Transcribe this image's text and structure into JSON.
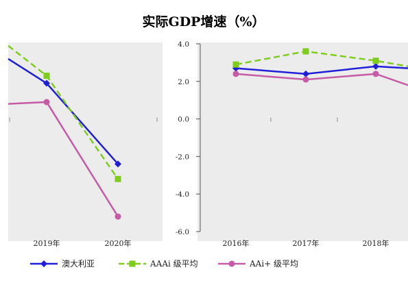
{
  "chart_data": [
    {
      "type": "line",
      "title": "实际GDP增速（%）",
      "categories": [
        "2019年",
        "2020年"
      ],
      "series": [
        {
          "name": "澳大利亚",
          "values": [
            1.9,
            -2.4
          ],
          "color": "#1f1fd8",
          "marker": "diamond",
          "dash": false
        },
        {
          "name": "AAAi 级平均",
          "values": [
            2.3,
            -3.2
          ],
          "color": "#7fcc1f",
          "marker": "square",
          "dash": true
        },
        {
          "name": "AAi+ 级平均",
          "values": [
            0.9,
            -5.2
          ],
          "color": "#c65ba6",
          "marker": "circle",
          "dash": false
        }
      ],
      "ylim": [
        -6.0,
        4.0
      ],
      "yticks": [
        "4.0",
        "2.0",
        "0.0",
        "-2.0",
        "-4.0",
        "-6.0"
      ],
      "grid": false,
      "legend": "bottom"
    },
    {
      "type": "line",
      "categories": [
        "2016年",
        "2017年",
        "2018年"
      ],
      "series": [
        {
          "name": "澳大利亚",
          "values": [
            2.7,
            2.4,
            2.8
          ],
          "color": "#1f1fd8"
        },
        {
          "name": "AAAi 级平均",
          "values": [
            2.9,
            3.6,
            3.1
          ],
          "color": "#7fcc1f"
        },
        {
          "name": "AAi+ 级平均",
          "values": [
            2.4,
            2.1,
            2.4
          ],
          "color": "#c65ba6"
        }
      ]
    }
  ]
}
